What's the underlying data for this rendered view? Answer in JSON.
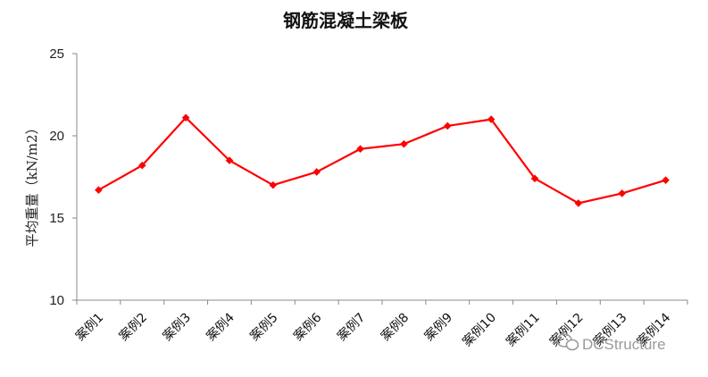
{
  "chart_data": {
    "type": "line",
    "title": "钢筋混凝土梁板",
    "xlabel": "",
    "ylabel": "平均重量（kN/m2）",
    "ylim": [
      10,
      25
    ],
    "yticks": [
      10,
      15,
      20,
      25
    ],
    "categories": [
      "案例1",
      "案例2",
      "案例3",
      "案例4",
      "案例5",
      "案例6",
      "案例7",
      "案例8",
      "案例9",
      "案例10",
      "案例11",
      "案例12",
      "案例13",
      "案例14"
    ],
    "series": [
      {
        "values": [
          16.7,
          18.2,
          21.1,
          18.5,
          17.0,
          17.8,
          19.2,
          19.5,
          20.6,
          21.0,
          17.4,
          15.9,
          16.5,
          17.3
        ],
        "color": "#ff0000",
        "marker": "diamond"
      }
    ],
    "grid": false,
    "legend": "none"
  },
  "watermark": {
    "text": "DCStructure",
    "icon": "wechat-icon"
  }
}
